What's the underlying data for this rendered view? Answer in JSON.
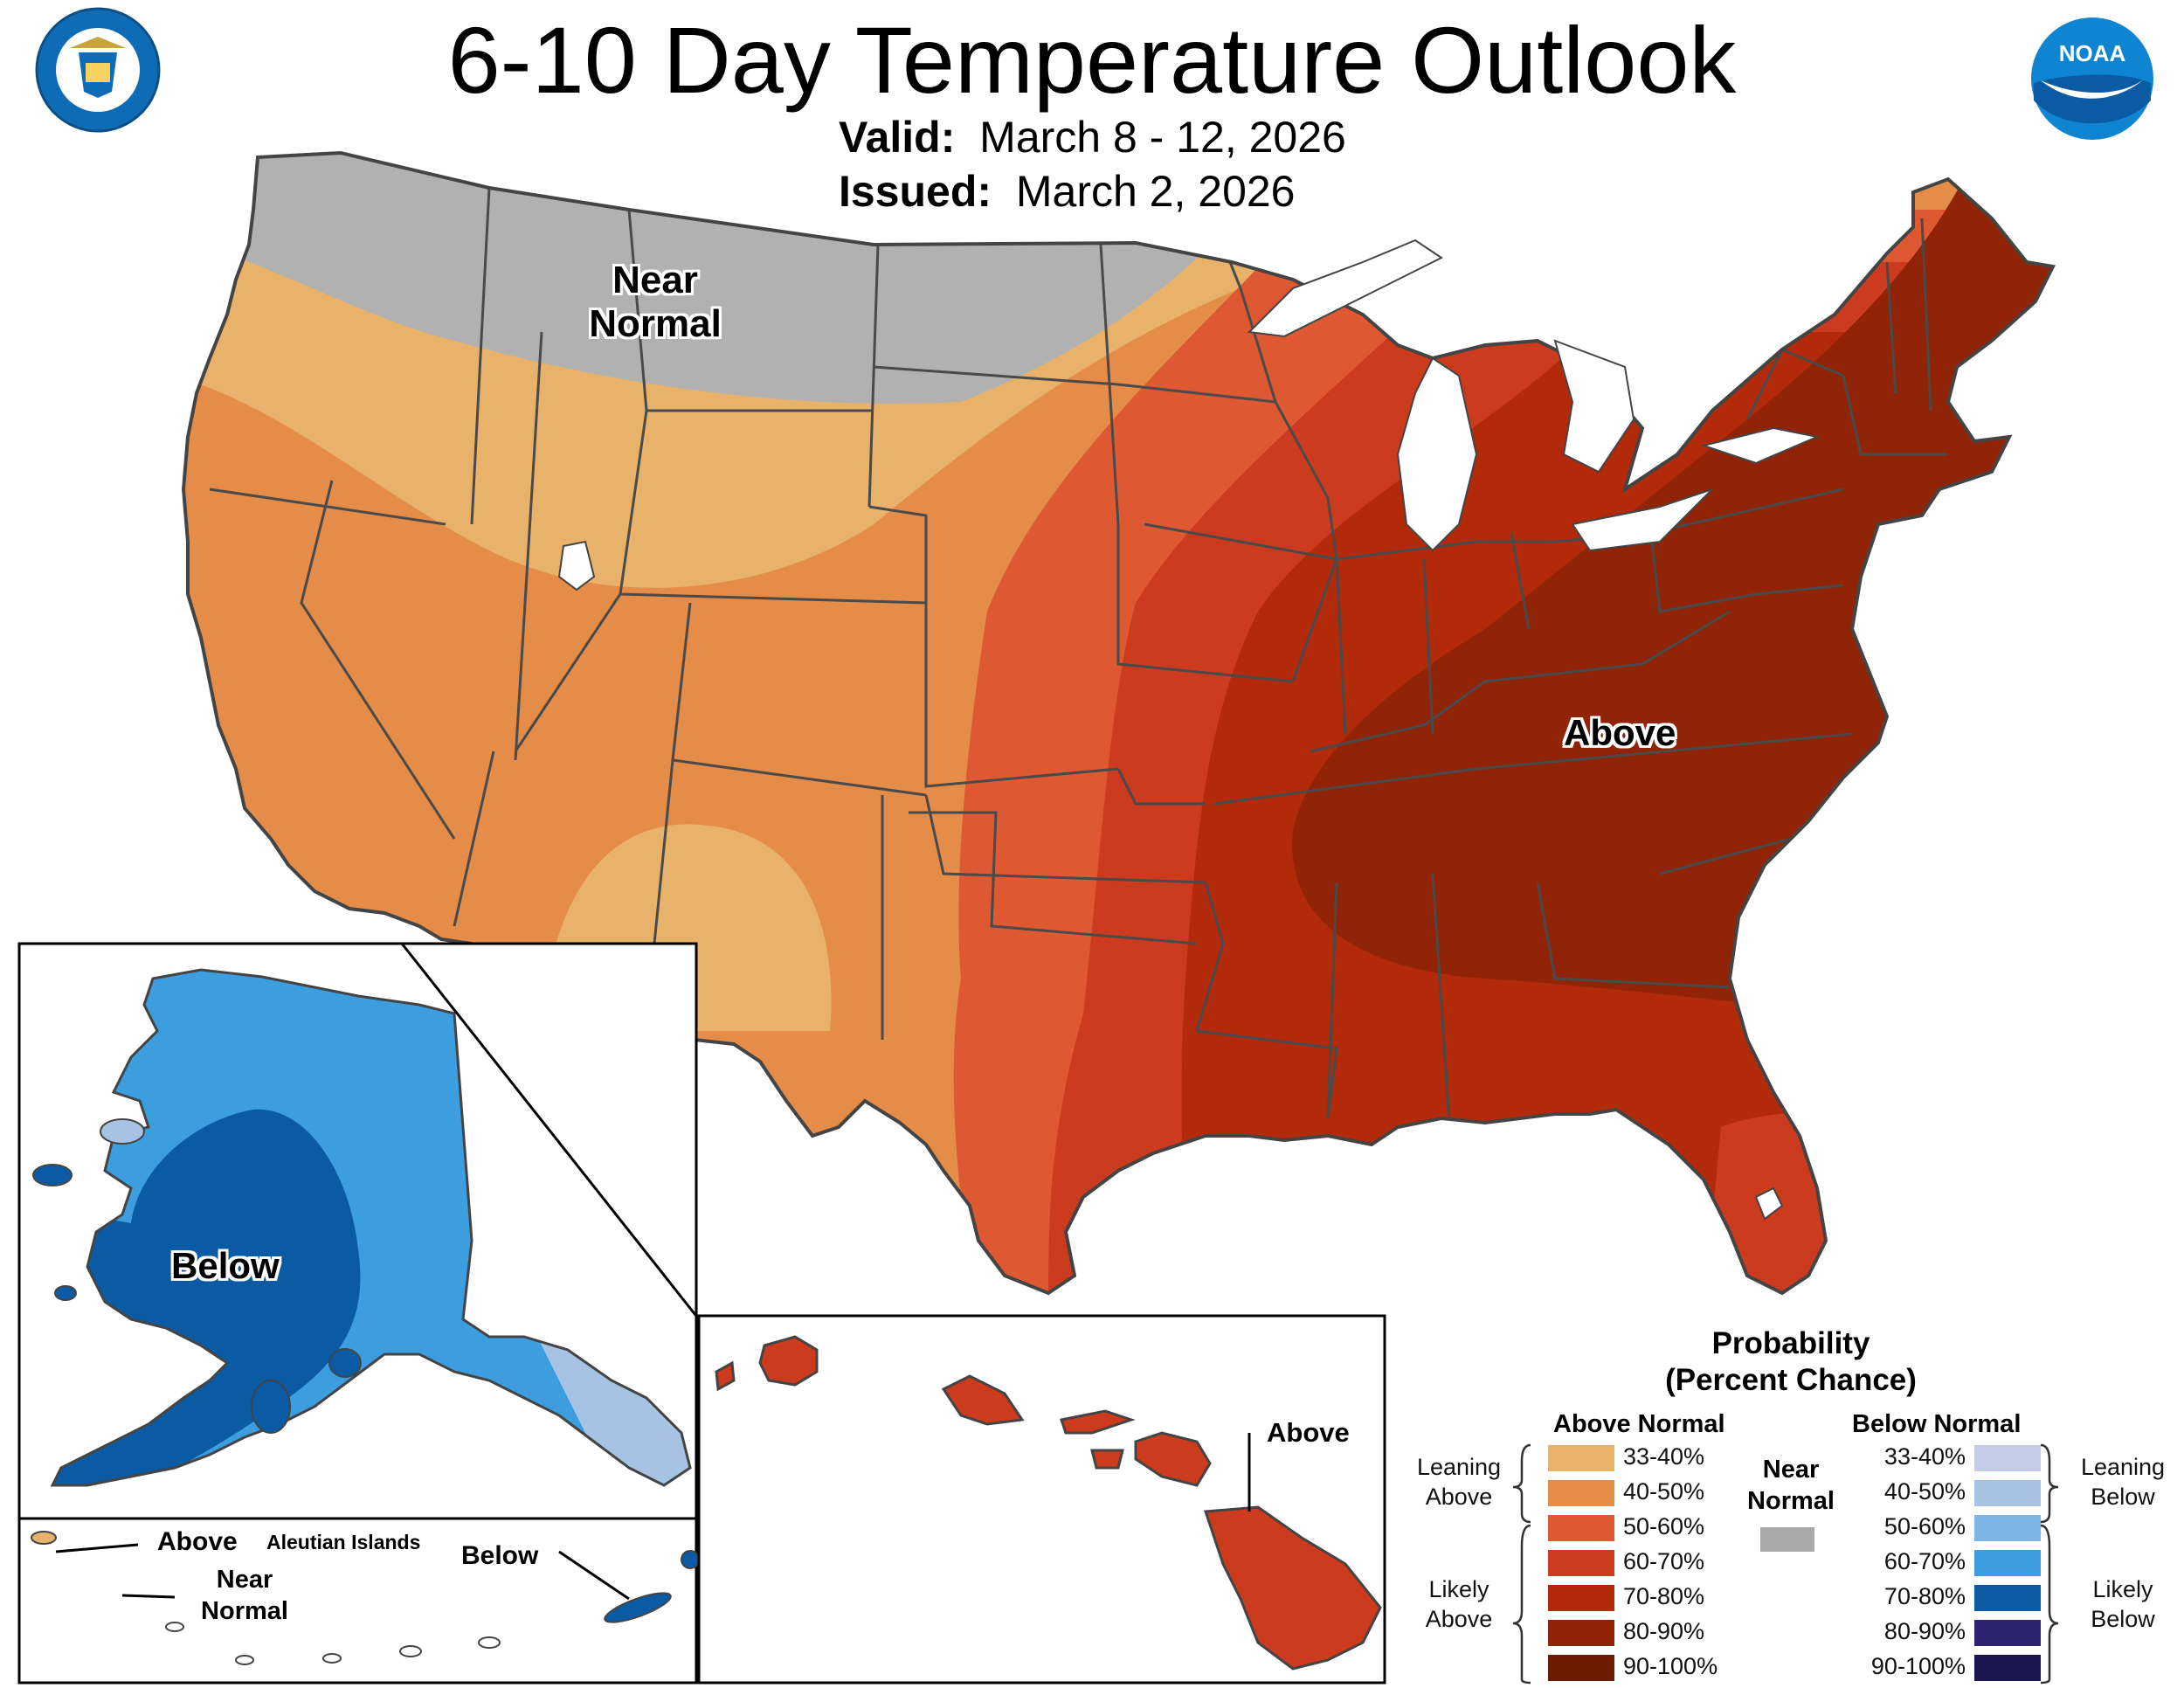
{
  "title": "6-10 Day Temperature Outlook",
  "valid": {
    "label": "Valid:",
    "value": "March 8 - 12, 2026"
  },
  "issued": {
    "label": "Issued:",
    "value": "March 2, 2026"
  },
  "logos": {
    "left": "department-of-commerce-seal",
    "right": "noaa-logo",
    "noaa_text": "NOAA"
  },
  "map_labels": {
    "near_normal": [
      "Near",
      "Normal"
    ],
    "above": "Above",
    "below": "Below",
    "hawaii_above": "Above",
    "aleutian_above": "Above",
    "aleutian_title": "Aleutian Islands",
    "aleutian_near_normal": [
      "Near",
      "Normal"
    ],
    "aleutian_below": "Below"
  },
  "legend": {
    "title_line1": "Probability",
    "title_line2": "(Percent Chance)",
    "above_header": "Above Normal",
    "below_header": "Below Normal",
    "near_header": [
      "Near",
      "Normal"
    ],
    "leaning_above": [
      "Leaning",
      "Above"
    ],
    "likely_above": [
      "Likely",
      "Above"
    ],
    "leaning_below": [
      "Leaning",
      "Below"
    ],
    "likely_below": [
      "Likely",
      "Below"
    ],
    "above_bins": [
      {
        "label": "33-40%",
        "color": "#E8B26A"
      },
      {
        "label": "40-50%",
        "color": "#E48C48"
      },
      {
        "label": "50-60%",
        "color": "#DE5832"
      },
      {
        "label": "60-70%",
        "color": "#CC3B1E"
      },
      {
        "label": "70-80%",
        "color": "#B22A0A"
      },
      {
        "label": "80-90%",
        "color": "#912407"
      },
      {
        "label": "90-100%",
        "color": "#6B1C00"
      }
    ],
    "near_color": "#A9A9A9",
    "below_bins": [
      {
        "label": "33-40%",
        "color": "#C2CCE6"
      },
      {
        "label": "40-50%",
        "color": "#A6C3E4"
      },
      {
        "label": "50-60%",
        "color": "#7DB5E7"
      },
      {
        "label": "60-70%",
        "color": "#3C9DDF"
      },
      {
        "label": "70-80%",
        "color": "#0A5BA4"
      },
      {
        "label": "80-90%",
        "color": "#2D2372"
      },
      {
        "label": "90-100%",
        "color": "#1C1650"
      }
    ]
  }
}
